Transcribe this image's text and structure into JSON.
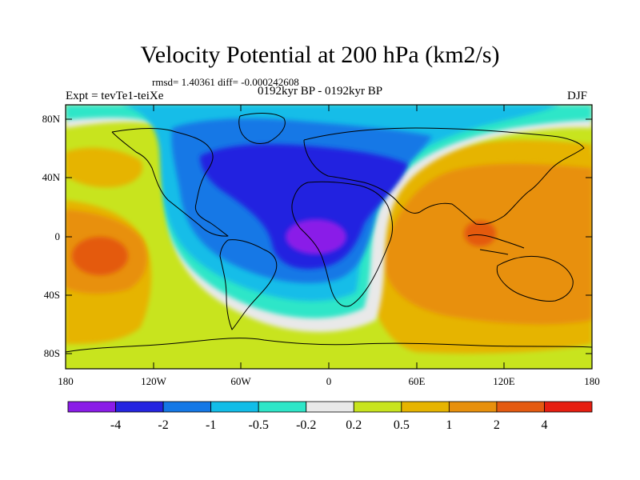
{
  "title": "Velocity Potential at 200 hPa (km2/s)",
  "stats_line": "rmsd= 1.40361 diff= -0.000242608",
  "period_line": "0192kyr BP - 0192kyr BP",
  "experiment": "Expt = tevTe1-teiXe",
  "season": "DJF",
  "lat_ticks": [
    "80N",
    "40N",
    "0",
    "40S",
    "80S"
  ],
  "lon_ticks": [
    "180",
    "120W",
    "60W",
    "0",
    "60E",
    "120E",
    "180"
  ],
  "colorbar": {
    "colors": [
      "#8a1be8",
      "#2424e0",
      "#1478e6",
      "#12bde8",
      "#2ee6c8",
      "#e9e9e9",
      "#c8e41e",
      "#e6b400",
      "#e8900c",
      "#e45a10",
      "#e61e10"
    ],
    "labels": [
      "-4",
      "-2",
      "-1",
      "-0.5",
      "-0.2",
      "0.2",
      "0.5",
      "1",
      "2",
      "4"
    ]
  }
}
